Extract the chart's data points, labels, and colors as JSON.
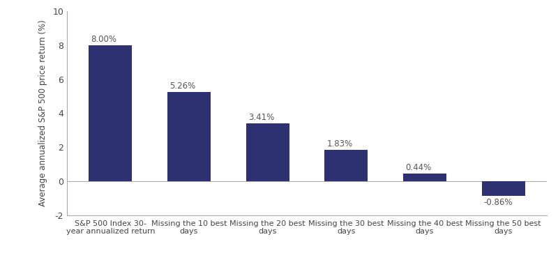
{
  "categories": [
    "S&P 500 Index 30-\nyear annualized return",
    "Missing the 10 best\ndays",
    "Missing the 20 best\ndays",
    "Missing the 30 best\ndays",
    "Missing the 40 best\ndays",
    "Missing the 50 best\ndays"
  ],
  "values": [
    8.0,
    5.26,
    3.41,
    1.83,
    0.44,
    -0.86
  ],
  "labels": [
    "8.00%",
    "5.26%",
    "3.41%",
    "1.83%",
    "0.44%",
    "-0.86%"
  ],
  "bar_color": "#2e3171",
  "ylabel": "Average annualized S&P 500 price return (%)",
  "ylim": [
    -2,
    10
  ],
  "yticks": [
    -2,
    0,
    2,
    4,
    6,
    8,
    10
  ],
  "background_color": "#ffffff",
  "label_fontsize": 8.5,
  "ylabel_fontsize": 8.5,
  "xtick_fontsize": 8,
  "ytick_fontsize": 9,
  "bar_width": 0.55
}
